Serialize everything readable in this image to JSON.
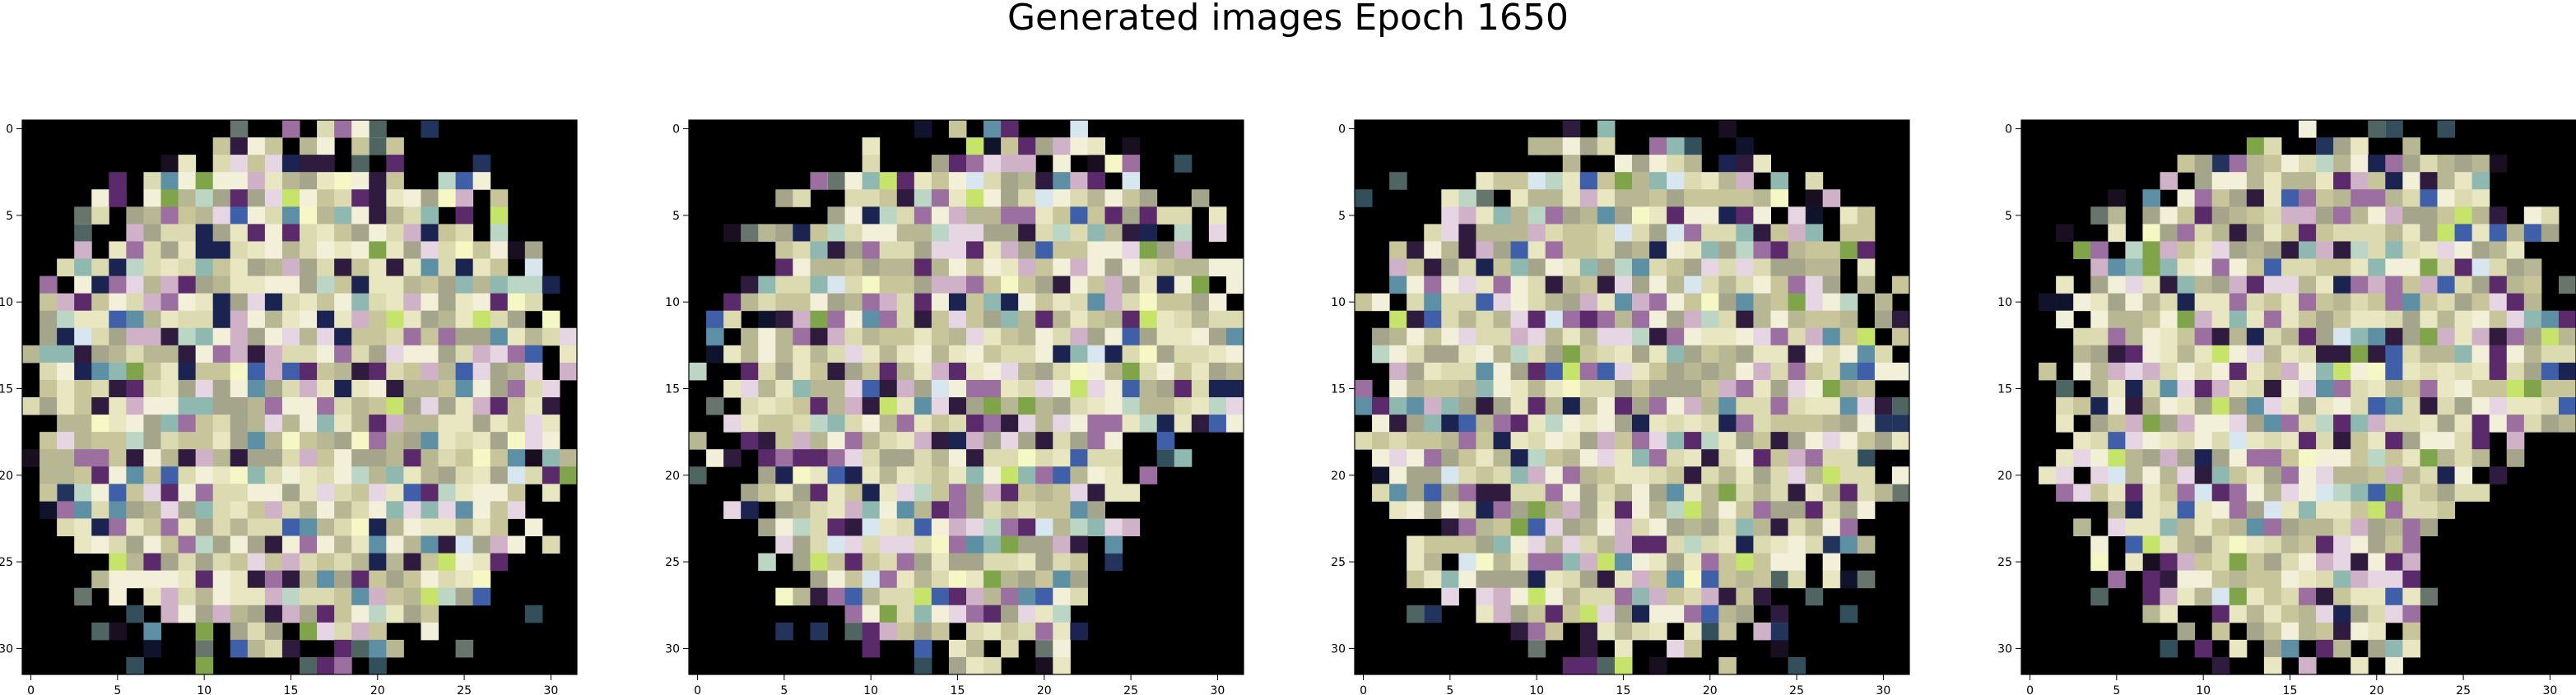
{
  "figure": {
    "title": "Generated images Epoch 1650"
  },
  "chart_data": [
    {
      "type": "heatmap",
      "title": "",
      "x_ticks": [
        0,
        5,
        10,
        15,
        20,
        25,
        30
      ],
      "y_ticks": [
        0,
        5,
        10,
        15,
        20,
        25,
        30
      ],
      "xlim": [
        -0.5,
        31.5
      ],
      "ylim": [
        31.5,
        -0.5
      ],
      "grid": false,
      "shape": [
        32,
        32
      ],
      "variant": 0
    },
    {
      "type": "heatmap",
      "title": "",
      "x_ticks": [
        0,
        5,
        10,
        15,
        20,
        25,
        30
      ],
      "y_ticks": [
        0,
        5,
        10,
        15,
        20,
        25,
        30
      ],
      "xlim": [
        -0.5,
        31.5
      ],
      "ylim": [
        31.5,
        -0.5
      ],
      "grid": false,
      "shape": [
        32,
        32
      ],
      "variant": 1
    },
    {
      "type": "heatmap",
      "title": "",
      "x_ticks": [
        0,
        5,
        10,
        15,
        20,
        25,
        30
      ],
      "y_ticks": [
        0,
        5,
        10,
        15,
        20,
        25,
        30
      ],
      "xlim": [
        -0.5,
        31.5
      ],
      "ylim": [
        31.5,
        -0.5
      ],
      "grid": false,
      "shape": [
        32,
        32
      ],
      "variant": 2
    },
    {
      "type": "heatmap",
      "title": "",
      "x_ticks": [
        0,
        5,
        10,
        15,
        20,
        25,
        30
      ],
      "y_ticks": [
        0,
        5,
        10,
        15,
        20,
        25,
        30
      ],
      "xlim": [
        -0.5,
        31.5
      ],
      "ylim": [
        31.5,
        -0.5
      ],
      "grid": false,
      "shape": [
        32,
        32
      ],
      "variant": 3
    }
  ],
  "colors": {
    "background": "#000000",
    "palette": [
      "#f2f0d8",
      "#e9e6c2",
      "#dcdab0",
      "#c9c59a",
      "#b7b893",
      "#a5a58c",
      "#e6d6e3",
      "#cfb1c8",
      "#9b6fa0",
      "#5b2a6a",
      "#2f1b3d",
      "#bcd6c6",
      "#8fb8b0",
      "#5d8fa5",
      "#3f5fa8",
      "#1b2450",
      "#d8e6f0",
      "#f5f7c4",
      "#c6e36a",
      "#7fa44a"
    ]
  }
}
